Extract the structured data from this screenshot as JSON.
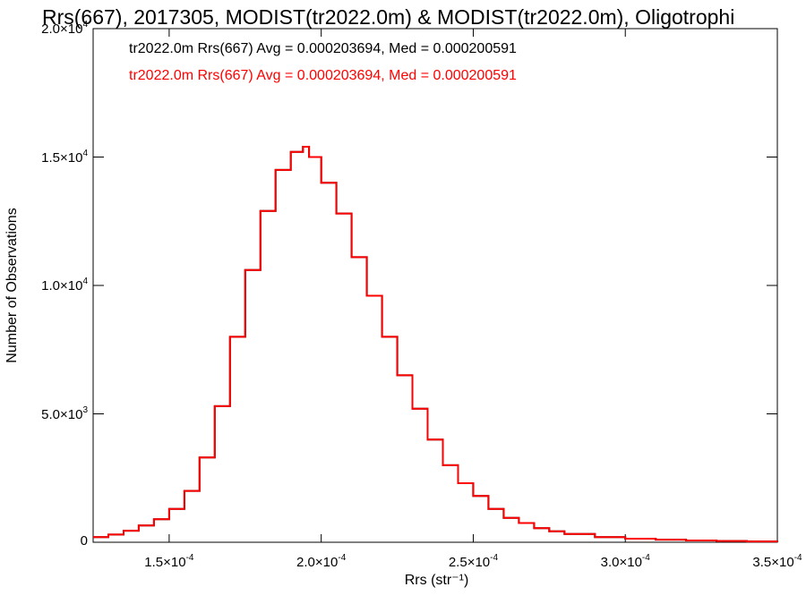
{
  "chart_data": {
    "type": "histogram",
    "title": "Rrs(667), 2017305, MODIST(tr2022.0m) & MODIST(tr2022.0m), Oligotrophi",
    "xlabel": "Rrs (str⁻¹)",
    "ylabel": "Number of Observations",
    "xlim": [
      0.000125,
      0.00035
    ],
    "ylim": [
      0,
      20000
    ],
    "x_ticks": [
      {
        "value": 0.00015,
        "mantissa": "1.5",
        "exponent": "-4"
      },
      {
        "value": 0.0002,
        "mantissa": "2.0",
        "exponent": "-4"
      },
      {
        "value": 0.00025,
        "mantissa": "2.5",
        "exponent": "-4"
      },
      {
        "value": 0.0003,
        "mantissa": "3.0",
        "exponent": "-4"
      },
      {
        "value": 0.00035,
        "mantissa": "3.5",
        "exponent": "-4"
      }
    ],
    "y_ticks": [
      {
        "value": 0,
        "mantissa": "0",
        "exponent": ""
      },
      {
        "value": 5000,
        "mantissa": "5.0",
        "exponent": "3"
      },
      {
        "value": 10000,
        "mantissa": "1.0",
        "exponent": "4"
      },
      {
        "value": 15000,
        "mantissa": "1.5",
        "exponent": "4"
      },
      {
        "value": 20000,
        "mantissa": "2.0",
        "exponent": "4"
      }
    ],
    "series": [
      {
        "name": "tr2022.0m Rrs(667) Avg = 0.000203694, Med = 0.000200591",
        "color": "#000000",
        "x": [
          0.000125,
          0.00013,
          0.000135,
          0.00014,
          0.000145,
          0.00015,
          0.000155,
          0.00016,
          0.000165,
          0.00017,
          0.000175,
          0.00018,
          0.000185,
          0.00019,
          0.000194,
          0.000196,
          0.0002,
          0.000205,
          0.00021,
          0.000215,
          0.00022,
          0.000225,
          0.00023,
          0.000235,
          0.00024,
          0.000245,
          0.00025,
          0.000255,
          0.00026,
          0.000265,
          0.00027,
          0.000275,
          0.00028,
          0.00029,
          0.0003,
          0.00031,
          0.00032,
          0.00033,
          0.00034,
          0.00035
        ],
        "values": [
          200,
          300,
          450,
          650,
          900,
          1300,
          2000,
          3300,
          5300,
          8000,
          10600,
          12900,
          14500,
          15200,
          15400,
          15000,
          14000,
          12800,
          11100,
          9600,
          8000,
          6500,
          5200,
          4000,
          3000,
          2300,
          1800,
          1300,
          950,
          750,
          550,
          430,
          320,
          200,
          140,
          100,
          70,
          50,
          30,
          10
        ]
      },
      {
        "name": "tr2022.0m Rrs(667) Avg = 0.000203694, Med = 0.000200591",
        "color": "#ff0000",
        "x": [
          0.000125,
          0.00013,
          0.000135,
          0.00014,
          0.000145,
          0.00015,
          0.000155,
          0.00016,
          0.000165,
          0.00017,
          0.000175,
          0.00018,
          0.000185,
          0.00019,
          0.000194,
          0.000196,
          0.0002,
          0.000205,
          0.00021,
          0.000215,
          0.00022,
          0.000225,
          0.00023,
          0.000235,
          0.00024,
          0.000245,
          0.00025,
          0.000255,
          0.00026,
          0.000265,
          0.00027,
          0.000275,
          0.00028,
          0.00029,
          0.0003,
          0.00031,
          0.00032,
          0.00033,
          0.00034,
          0.00035
        ],
        "values": [
          200,
          300,
          450,
          650,
          900,
          1300,
          2000,
          3300,
          5300,
          8000,
          10600,
          12900,
          14500,
          15200,
          15400,
          15000,
          14000,
          12800,
          11100,
          9600,
          8000,
          6500,
          5200,
          4000,
          3000,
          2300,
          1800,
          1300,
          950,
          750,
          550,
          430,
          320,
          200,
          140,
          100,
          70,
          50,
          30,
          10
        ]
      }
    ],
    "grid": false
  }
}
